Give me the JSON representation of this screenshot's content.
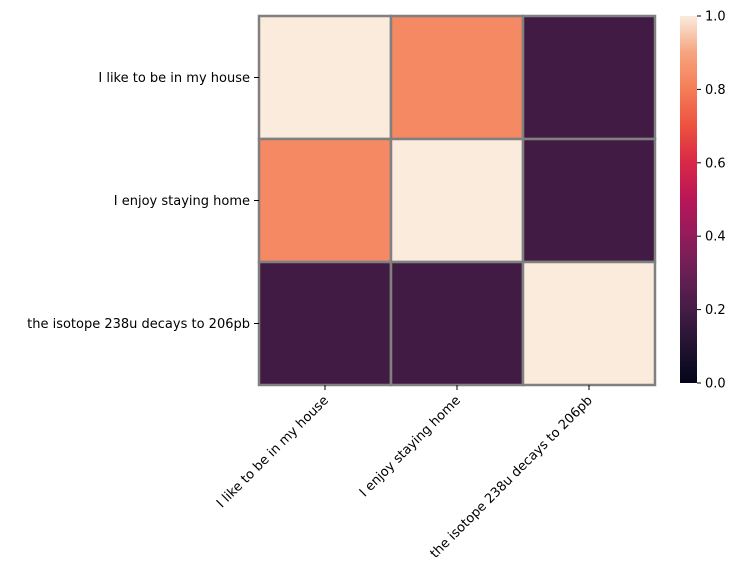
{
  "chart_data": {
    "type": "heatmap",
    "rows": [
      "I like to be in my house",
      "I enjoy staying home",
      "the isotope 238u decays to 206pb"
    ],
    "columns": [
      "I like to be in my house",
      "I enjoy staying home",
      "the isotope 238u decays to 206pb"
    ],
    "values": [
      [
        1.0,
        0.83,
        0.19
      ],
      [
        0.83,
        1.0,
        0.19
      ],
      [
        0.19,
        0.19,
        1.0
      ]
    ],
    "vmin": 0.0,
    "vmax": 1.0,
    "colormap": "rocket",
    "colorbar_ticks": [
      "0.0",
      "0.2",
      "0.4",
      "0.6",
      "0.8",
      "1.0"
    ],
    "cell_border_color": "#808080",
    "title": "",
    "xlabel": "",
    "ylabel": ""
  }
}
